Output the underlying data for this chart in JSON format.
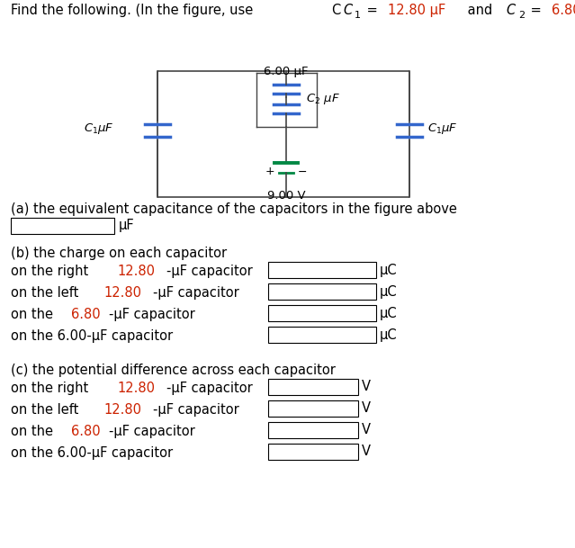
{
  "circuit_color": "#3366cc",
  "battery_color": "#008844",
  "wire_color": "#444444",
  "section_a_label": "(a) the equivalent capacitance of the capacitors in the figure above",
  "section_b_label": "(b) the charge on each capacitor",
  "section_c_label": "(c) the potential difference across each capacitor",
  "b_rows": [
    {
      "parts": [
        {
          "text": "on the right ",
          "color": "black"
        },
        {
          "text": "12.80",
          "color": "#cc2200"
        },
        {
          "text": "-μF capacitor",
          "color": "black"
        }
      ],
      "unit": "μC"
    },
    {
      "parts": [
        {
          "text": "on the left ",
          "color": "black"
        },
        {
          "text": "12.80",
          "color": "#cc2200"
        },
        {
          "text": "-μF capacitor",
          "color": "black"
        }
      ],
      "unit": "μC"
    },
    {
      "parts": [
        {
          "text": "on the ",
          "color": "black"
        },
        {
          "text": "6.80",
          "color": "#cc2200"
        },
        {
          "text": "-μF capacitor",
          "color": "black"
        }
      ],
      "unit": "μC"
    },
    {
      "parts": [
        {
          "text": "on the 6.00-μF capacitor",
          "color": "black"
        }
      ],
      "unit": "μC"
    }
  ],
  "c_rows": [
    {
      "parts": [
        {
          "text": "on the right ",
          "color": "black"
        },
        {
          "text": "12.80",
          "color": "#cc2200"
        },
        {
          "text": "-μF capacitor",
          "color": "black"
        }
      ],
      "unit": "V"
    },
    {
      "parts": [
        {
          "text": "on the left ",
          "color": "black"
        },
        {
          "text": "12.80",
          "color": "#cc2200"
        },
        {
          "text": "-μF capacitor",
          "color": "black"
        }
      ],
      "unit": "V"
    },
    {
      "parts": [
        {
          "text": "on the ",
          "color": "black"
        },
        {
          "text": "6.80",
          "color": "#cc2200"
        },
        {
          "text": "-μF capacitor",
          "color": "black"
        }
      ],
      "unit": "V"
    },
    {
      "parts": [
        {
          "text": "on the 6.00-μF capacitor",
          "color": "black"
        }
      ],
      "unit": "V"
    }
  ],
  "fig_width": 6.39,
  "fig_height": 6.09,
  "bg_color": "#ffffff",
  "font_size": 10.5,
  "label_font_size": 9.5
}
